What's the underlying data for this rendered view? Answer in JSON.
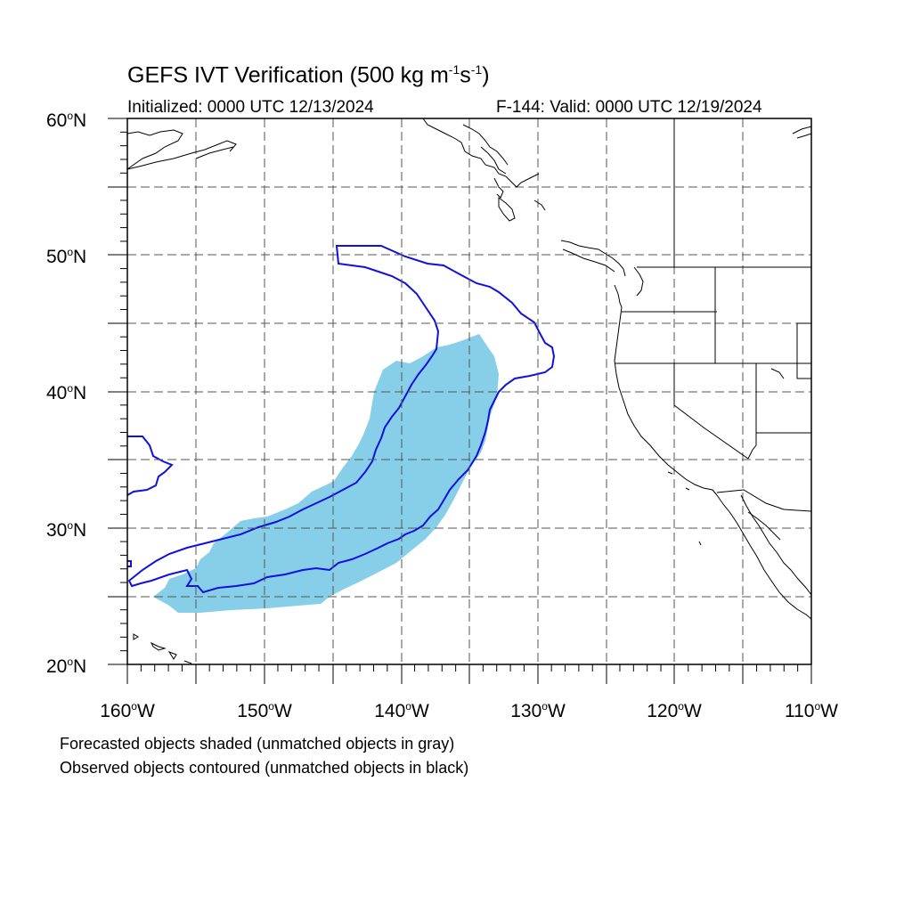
{
  "title": {
    "main": "GEFS IVT Verification (500 kg m",
    "exp1": "-1",
    "mid": "s",
    "exp2": "-1",
    "close": ")"
  },
  "init_label": "Initialized: 0000 UTC 12/13/2024",
  "valid_label": "F-144: Valid: 0000 UTC 12/19/2024",
  "lat_axis": [
    {
      "value": "60",
      "hem": "N"
    },
    {
      "value": "50",
      "hem": "N"
    },
    {
      "value": "40",
      "hem": "N"
    },
    {
      "value": "30",
      "hem": "N"
    },
    {
      "value": "20",
      "hem": "N"
    }
  ],
  "lon_axis": [
    {
      "value": "160",
      "hem": "W"
    },
    {
      "value": "150",
      "hem": "W"
    },
    {
      "value": "140",
      "hem": "W"
    },
    {
      "value": "130",
      "hem": "W"
    },
    {
      "value": "120",
      "hem": "W"
    },
    {
      "value": "110",
      "hem": "W"
    }
  ],
  "degree_symbol": "o",
  "map_extent": {
    "lon": [
      -160,
      -110
    ],
    "lat": [
      20,
      60
    ]
  },
  "grid": "dashed",
  "colors": {
    "forecast_fill": "#87CEE8",
    "observed_contour": "#1010E0",
    "coastline": "#000000",
    "grid": "#555555"
  },
  "legend_notes": [
    "Forecasted objects shaded (unmatched objects in gray)",
    "Observed objects contoured (unmatched objects in black)"
  ]
}
